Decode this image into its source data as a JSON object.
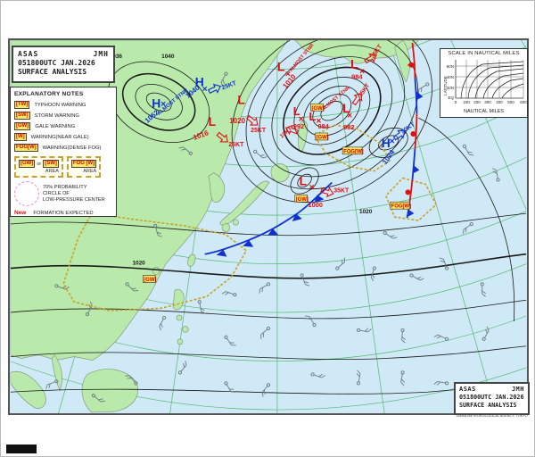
{
  "title_block": {
    "product": "ASAS",
    "channel": "JMH",
    "datetime": "051800UTC JAN.2026",
    "type": "SURFACE ANALYSIS",
    "agency": "JAPAN METEOROLOGICAL AGENCY, TOKYO"
  },
  "legend": {
    "header": "EXPLANATORY NOTES",
    "rows": [
      {
        "token": "[TW]",
        "label": "TYPHOON WARNING"
      },
      {
        "token": "[SW]",
        "label": "STORM WARNING"
      },
      {
        "token": "[GW]",
        "label": "GALE WARNING"
      },
      {
        "token": "[W]",
        "label": "WARNING(NEAR GALE)"
      },
      {
        "token": "FOG[W]",
        "label": "WARNING(DENSE FOG)"
      }
    ],
    "area_box_1": {
      "t1": "[GW]",
      "sep": "or",
      "t2": "[SW]",
      "label": "AREA"
    },
    "area_box_2": {
      "t1": "FOG [W]",
      "label": "AREA"
    },
    "probability": {
      "line1": "70% PROBABILITY",
      "line2": "CIRCLE OF",
      "line3": "LOW-PRESSURE CENTER"
    },
    "new_marker": {
      "word": "New",
      "label": "FORMATION EXPECTED"
    }
  },
  "scale_box": {
    "title": "SCALE IN NAUTICAL MILES",
    "ylabel": "LATITUDE",
    "xlabel": "NAUTICAL MILES",
    "yticks": [
      "60N",
      "40N",
      "20N",
      "EQ"
    ],
    "xticks": [
      "0",
      "100",
      "200",
      "300",
      "400",
      "500",
      "600"
    ]
  },
  "pressure_systems": [
    {
      "glyph": "H",
      "value": "1052",
      "movement": "ALMOST STNR"
    },
    {
      "glyph": "H",
      "value": "1040",
      "movement": "25KT"
    },
    {
      "glyph": "L",
      "value": "1016",
      "movement": "25KT"
    },
    {
      "glyph": "L",
      "value": "1020",
      "movement": "25KT"
    },
    {
      "glyph": "L",
      "value": "1010",
      "movement": "ALMOST STNR"
    },
    {
      "glyph": "L",
      "value": "992",
      "movement": "10KT"
    },
    {
      "glyph": "L",
      "value": "984",
      "movement": "ALMOST STNR"
    },
    {
      "glyph": "L",
      "value": "982",
      "movement": "35KT"
    },
    {
      "glyph": "L",
      "value": "984",
      "movement": "35KT"
    },
    {
      "glyph": "H",
      "value": "1024",
      "movement": "30KT"
    },
    {
      "glyph": "L",
      "value": "1000",
      "movement": "35KT"
    }
  ],
  "warning_labels": [
    {
      "text": "[GW]"
    },
    {
      "text": "[GW]"
    },
    {
      "text": "[GW]"
    },
    {
      "text": "[GW]"
    },
    {
      "text": "FOG[W]"
    },
    {
      "text": "FOG[W]"
    }
  ],
  "isobar_labels": [
    {
      "value": "1036"
    },
    {
      "value": "1040"
    },
    {
      "value": "1020"
    },
    {
      "value": "1020"
    }
  ],
  "colors": {
    "sea": "#cfe9f6",
    "land": "#b9e9ab",
    "graticule": "#3fae5a",
    "isobar": "#1a1a1a",
    "high": "#1030d0",
    "low": "#e01010",
    "warning_yellow": "#ffe95e",
    "warning_border": "#c9a227",
    "prob_pink": "#ee7fd0"
  },
  "stations": [
    [
      60,
      320,
      20
    ],
    [
      95,
      352,
      300
    ],
    [
      140,
      318,
      45
    ],
    [
      182,
      356,
      120
    ],
    [
      222,
      338,
      80
    ],
    [
      262,
      330,
      200
    ],
    [
      300,
      318,
      150
    ],
    [
      338,
      308,
      70
    ],
    [
      378,
      300,
      320
    ],
    [
      420,
      300,
      110
    ],
    [
      462,
      308,
      30
    ],
    [
      502,
      300,
      250
    ],
    [
      542,
      318,
      90
    ],
    [
      60,
      428,
      160
    ],
    [
      102,
      444,
      40
    ],
    [
      150,
      430,
      230
    ],
    [
      200,
      418,
      310
    ],
    [
      252,
      430,
      60
    ],
    [
      300,
      432,
      130
    ],
    [
      350,
      420,
      20
    ],
    [
      402,
      430,
      280
    ],
    [
      452,
      418,
      100
    ],
    [
      502,
      430,
      190
    ],
    [
      544,
      440,
      330
    ],
    [
      252,
      378,
      55
    ],
    [
      300,
      368,
      140
    ],
    [
      352,
      364,
      240
    ],
    [
      402,
      370,
      10
    ],
    [
      452,
      370,
      95
    ],
    [
      502,
      380,
      205
    ],
    [
      544,
      380,
      300
    ],
    [
      172,
      252,
      75
    ],
    [
      252,
      80,
      120
    ],
    [
      285,
      168,
      40
    ],
    [
      212,
      170,
      220
    ],
    [
      480,
      92,
      150
    ],
    [
      522,
      162,
      60
    ],
    [
      560,
      200,
      260
    ],
    [
      432,
      260,
      35
    ],
    [
      530,
      250,
      145
    ]
  ]
}
